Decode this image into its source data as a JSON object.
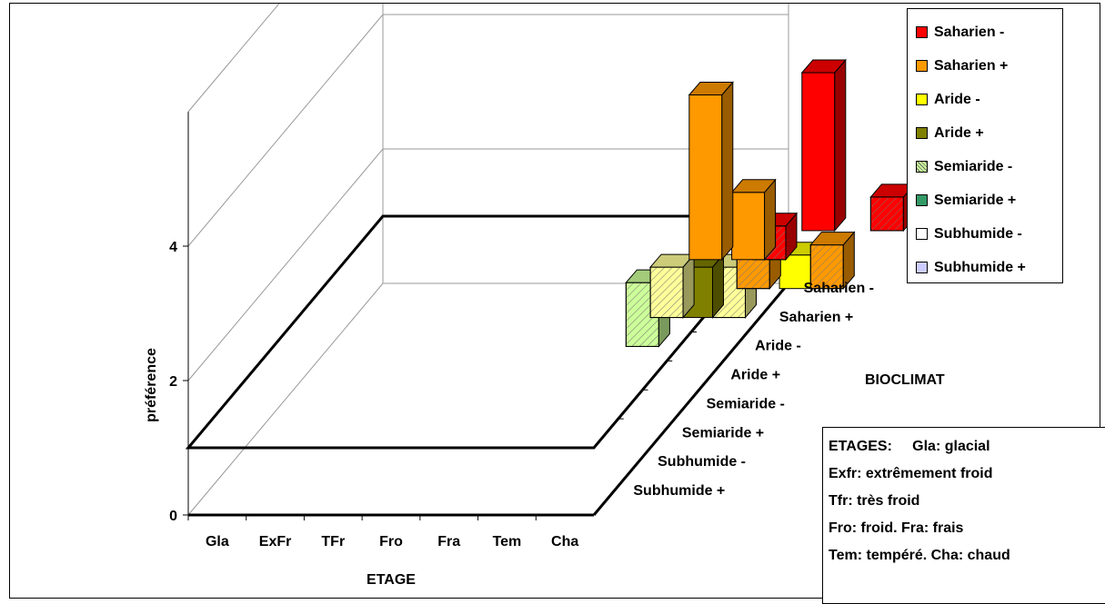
{
  "colors": {
    "saharien_minus": "#ff0000",
    "saharien_plus": "#ff9900",
    "aride_minus": "#ffff00",
    "aride_plus": "#808000",
    "semiaride_minus": "#ccff99",
    "semiaride_plus": "#339966",
    "subhumide_minus": "#ffffff",
    "subhumide_plus": "#ccccff"
  },
  "legend": [
    {
      "label": "Saharien -",
      "color": "#ff0000",
      "pattern": "solid"
    },
    {
      "label": "Saharien +",
      "color": "#ff9900",
      "pattern": "solid"
    },
    {
      "label": "Aride -",
      "color": "#ffff00",
      "pattern": "solid"
    },
    {
      "label": "Aride +",
      "color": "#808000",
      "pattern": "solid"
    },
    {
      "label": "Semiaride -",
      "color": "#ccff99",
      "pattern": "hatch"
    },
    {
      "label": "Semiaride +",
      "color": "#339966",
      "pattern": "solid"
    },
    {
      "label": "Subhumide -",
      "color": "#ffffff",
      "pattern": "solid"
    },
    {
      "label": "Subhumide +",
      "color": "#ccccff",
      "pattern": "solid"
    }
  ],
  "note": {
    "lines": [
      "ETAGES:     Gla: glacial",
      "Exfr: extrêmement froid",
      "Tfr: très froid",
      "Fro: froid. Fra: frais",
      "Tem: tempéré. Cha: chaud"
    ]
  },
  "chart_data": {
    "type": "bar3d",
    "title": "",
    "xlabel": "ETAGE",
    "ylabel": "préférence",
    "zlabel": "BIOCLIMAT",
    "categories": [
      "Gla",
      "ExFr",
      "TFr",
      "Fro",
      "Fra",
      "Tem",
      "Cha"
    ],
    "depth_categories": [
      "Saharien -",
      "Saharien +",
      "Aride -",
      "Aride +",
      "Semiaride -",
      "Semiaride +",
      "Subhumide -",
      "Subhumide +"
    ],
    "yticks": [
      0,
      2,
      4
    ],
    "ylim": [
      0,
      6
    ],
    "floor": 1,
    "grid": true,
    "legend_position": "top-right",
    "bars": [
      {
        "category": "Cha",
        "series": "Saharien -",
        "value": 4.7,
        "x_offset": 0.5,
        "color": "#ff0000",
        "pattern": "solid"
      },
      {
        "category": "Cha",
        "series": "Saharien -",
        "value": 1.0,
        "x_offset": 0.92,
        "color": "#ff0000",
        "pattern": "hatch"
      },
      {
        "category": "Cha",
        "series": "Saharien +",
        "value": 4.9,
        "x_offset": -0.04,
        "color": "#ff9900",
        "pattern": "solid"
      },
      {
        "category": "Cha",
        "series": "Saharien +",
        "value": 2.0,
        "x_offset": 0.22,
        "color": "#ff9900",
        "pattern": "solid"
      },
      {
        "category": "Cha",
        "series": "Saharien +",
        "value": 1.0,
        "x_offset": 0.35,
        "color": "#ff0000",
        "pattern": "hatch"
      },
      {
        "category": "Cha",
        "series": "Aride -",
        "value": 1.3,
        "x_offset": 0.4,
        "color": "#ff9900",
        "pattern": "hatch"
      },
      {
        "category": "Cha",
        "series": "Aride -",
        "value": 1.3,
        "x_offset": 0.85,
        "color": "#ff9900",
        "pattern": "hatch"
      },
      {
        "category": "Aride -",
        "series": "Aride -",
        "value": 1.0,
        "x_offset": 0.66,
        "color": "#ffff00",
        "pattern": "solid"
      },
      {
        "category": "Cha",
        "series": "Aride +",
        "value": 1.5,
        "x_offset": 0.02,
        "color": "#ffff99",
        "pattern": "hatch"
      },
      {
        "category": "Cha",
        "series": "Aride +",
        "value": 1.5,
        "x_offset": 0.2,
        "color": "#808000",
        "pattern": "solid"
      },
      {
        "category": "Cha",
        "series": "Aride +",
        "value": 1.5,
        "x_offset": 0.4,
        "color": "#ffff99",
        "pattern": "hatch"
      },
      {
        "category": "Cha",
        "series": "Semiaride -",
        "value": 1.9,
        "x_offset": 0.02,
        "color": "#ccff99",
        "pattern": "hatch"
      }
    ]
  }
}
